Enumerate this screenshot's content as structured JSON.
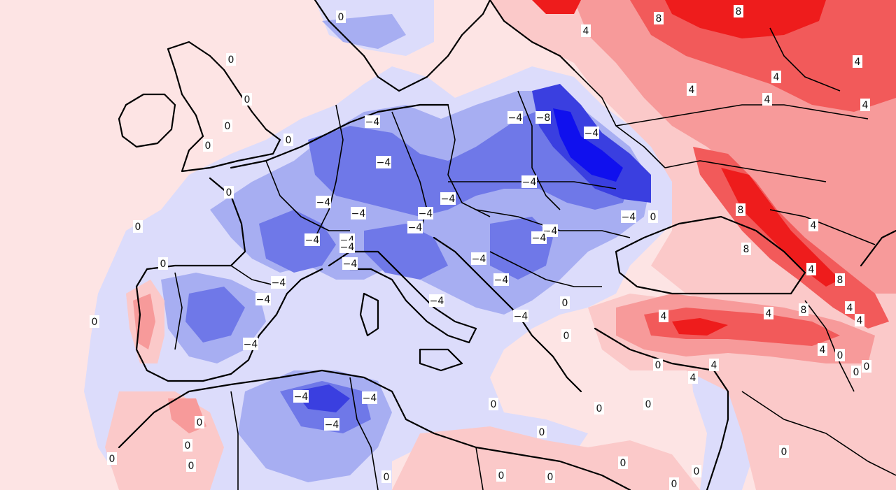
{
  "map": {
    "colors": {
      "background": "#fde4e4",
      "blue_light": "#dcdcfb",
      "blue_mid": "#a7aef2",
      "blue_strong": "#6f78e8",
      "blue_deep": "#3a3fe0",
      "blue_core": "#1010ee",
      "red_light": "#fbc9c9",
      "red_mid": "#f79a9a",
      "red_strong": "#f25a5a",
      "red_deep": "#ee1c1c"
    },
    "contour_labels": [
      "0",
      "0",
      "0",
      "0",
      "0",
      "0",
      "0",
      "0",
      "0",
      "0",
      "-4",
      "-8",
      "-4",
      "-4",
      "-4",
      "-4",
      "-4",
      "-4",
      "-4",
      "-4",
      "-4",
      "-4",
      "-4",
      "-4",
      "-4",
      "-4",
      "-4",
      "-4",
      "-4",
      "-4",
      "-4",
      "-4",
      "-4",
      "-4",
      "-4",
      "-4",
      "-4",
      "-4",
      "0",
      "0",
      "0",
      "0",
      "0",
      "0",
      "0",
      "0",
      "0",
      "0",
      "0",
      "0",
      "0",
      "0",
      "0",
      "0",
      "8",
      "8",
      "4",
      "4",
      "4",
      "4",
      "4",
      "4",
      "8",
      "4",
      "8",
      "4",
      "4",
      "8",
      "8",
      "4",
      "4",
      "4",
      "4",
      "4",
      "0",
      "0",
      "4",
      "0",
      "0",
      "0",
      "0",
      "0",
      "0"
    ]
  }
}
